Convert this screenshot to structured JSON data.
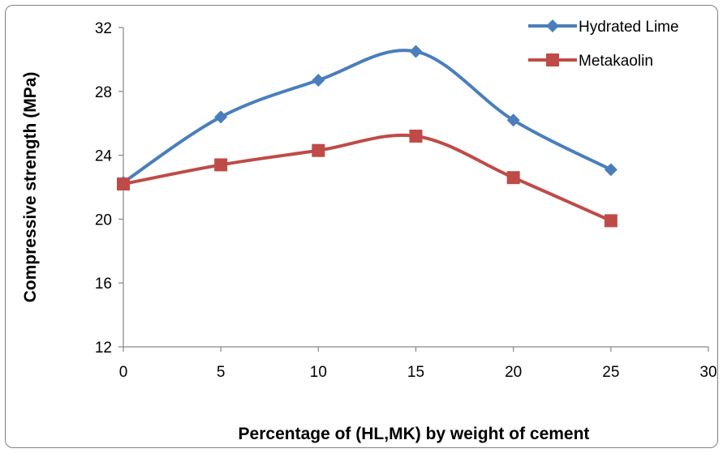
{
  "chart_data": {
    "type": "line",
    "title": "",
    "xlabel": "Percentage of (HL,MK) by weight of cement",
    "ylabel": "Compressive strength (MPa)",
    "x": [
      0,
      5,
      10,
      15,
      20,
      25
    ],
    "xlim": [
      0,
      30
    ],
    "ylim": [
      12,
      32
    ],
    "xticks": [
      0,
      5,
      10,
      15,
      20,
      25,
      30
    ],
    "yticks": [
      12,
      16,
      20,
      24,
      28,
      32
    ],
    "grid": false,
    "smooth": true,
    "legend_position": "top-right",
    "series": [
      {
        "name": "Hydrated Lime",
        "values": [
          22.3,
          26.4,
          28.7,
          30.5,
          26.2,
          23.1
        ],
        "color": "#4a7ebb",
        "marker": "diamond"
      },
      {
        "name": "Metakaolin",
        "values": [
          22.2,
          23.4,
          24.3,
          25.2,
          22.6,
          19.9
        ],
        "color": "#be4b48",
        "marker": "square"
      }
    ]
  }
}
